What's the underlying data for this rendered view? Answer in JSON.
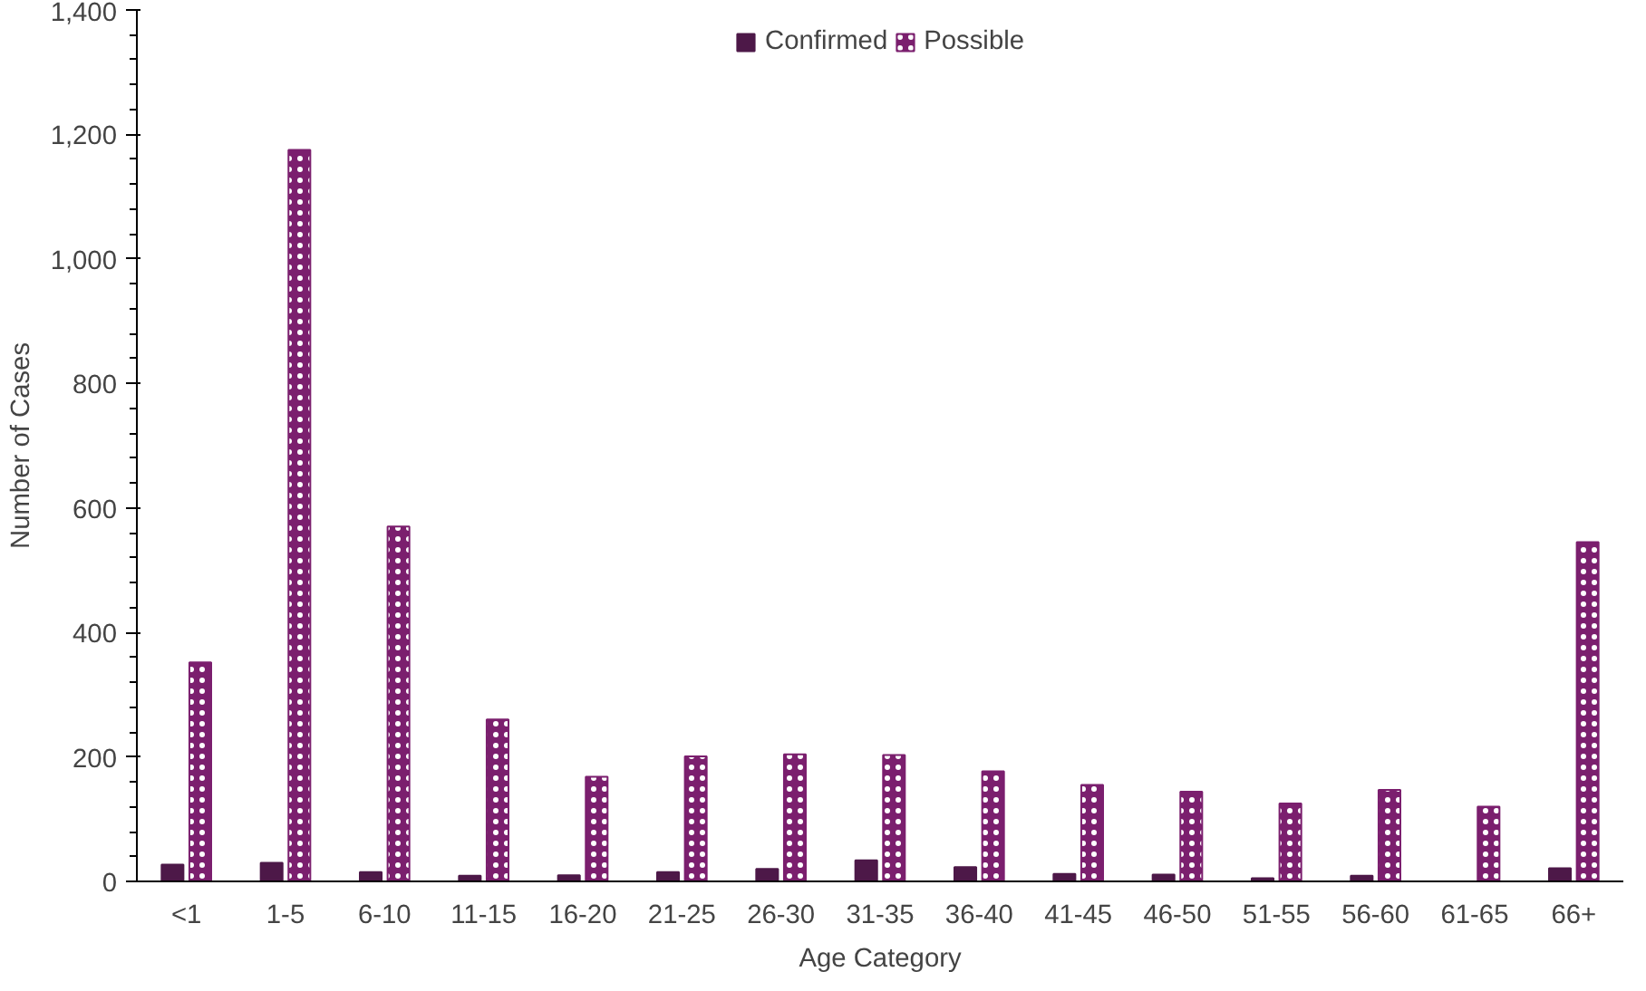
{
  "chart_data": {
    "type": "bar",
    "xlabel": "Age Category",
    "ylabel": "Number of Cases",
    "categories": [
      "<1",
      "1-5",
      "6-10",
      "11-15",
      "16-20",
      "21-25",
      "26-30",
      "31-35",
      "36-40",
      "41-45",
      "46-50",
      "51-55",
      "56-60",
      "61-65",
      "66+"
    ],
    "series": [
      {
        "name": "Confirmed",
        "color": "#4d1848",
        "values": [
          27,
          30,
          15,
          9,
          10,
          15,
          20,
          34,
          23,
          12,
          11,
          5,
          9,
          0,
          21
        ]
      },
      {
        "name": "Possible",
        "color": "#7b1f6e",
        "values": [
          352,
          1175,
          570,
          260,
          168,
          201,
          204,
          203,
          177,
          155,
          144,
          125,
          147,
          120,
          545
        ]
      }
    ],
    "ylim": [
      0,
      1400
    ],
    "yticks": [
      0,
      {
        "value": 200,
        "label": "200"
      },
      {
        "value": 400,
        "label": "400"
      },
      {
        "value": 600,
        "label": "600"
      },
      {
        "value": 800,
        "label": "800"
      },
      {
        "value": 1000,
        "label": "1,000"
      },
      {
        "value": 1200,
        "label": "1,200"
      },
      {
        "value": 1400,
        "label": "1,400"
      }
    ],
    "grid": false,
    "legend": "top"
  }
}
